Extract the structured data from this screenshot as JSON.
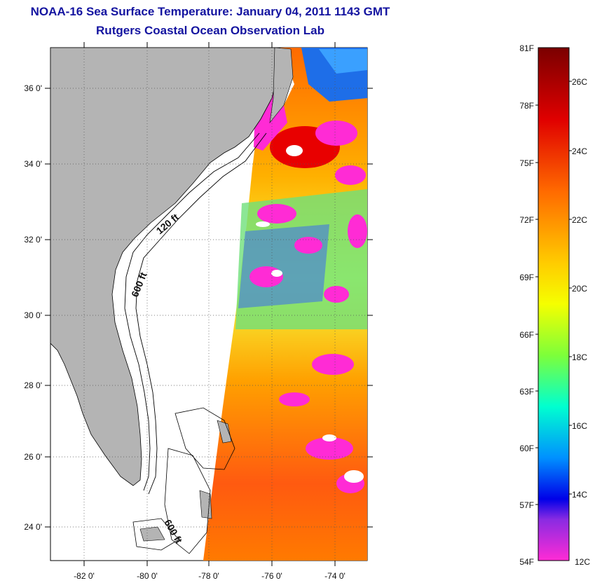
{
  "title": "NOAA-16 Sea Surface Temperature:  January 04, 2011 1143 GMT",
  "subtitle": "Rutgers Coastal Ocean Observation Lab",
  "lon_labels": [
    "-82 0'",
    "-80 0'",
    "-78 0'",
    "-76 0'",
    "-74 0'"
  ],
  "lat_labels": [
    "36 0'",
    "34 0'",
    "32 0'",
    "30 0'",
    "28 0'",
    "26 0'",
    "24 0'"
  ],
  "contour_labels": {
    "c120": "120 ft",
    "c600a": "600 ft",
    "c600b": "600 ft"
  },
  "colorbar": {
    "f_labels": [
      "81F",
      "78F",
      "75F",
      "72F",
      "69F",
      "66F",
      "63F",
      "60F",
      "57F",
      "54F"
    ],
    "c_labels": [
      "26C",
      "24C",
      "22C",
      "20C",
      "18C",
      "16C",
      "14C",
      "12C"
    ],
    "colors": [
      "#7a0000",
      "#e00000",
      "#ff6a00",
      "#ffcc00",
      "#f5ff00",
      "#7dff3a",
      "#00ffd0",
      "#0090ff",
      "#0000e8",
      "#8a2be2",
      "#ff2bd5"
    ]
  },
  "colors": {
    "title": "#1414a0",
    "land": "#b4b4b4",
    "cloud_mask": "#ff2bd5"
  }
}
